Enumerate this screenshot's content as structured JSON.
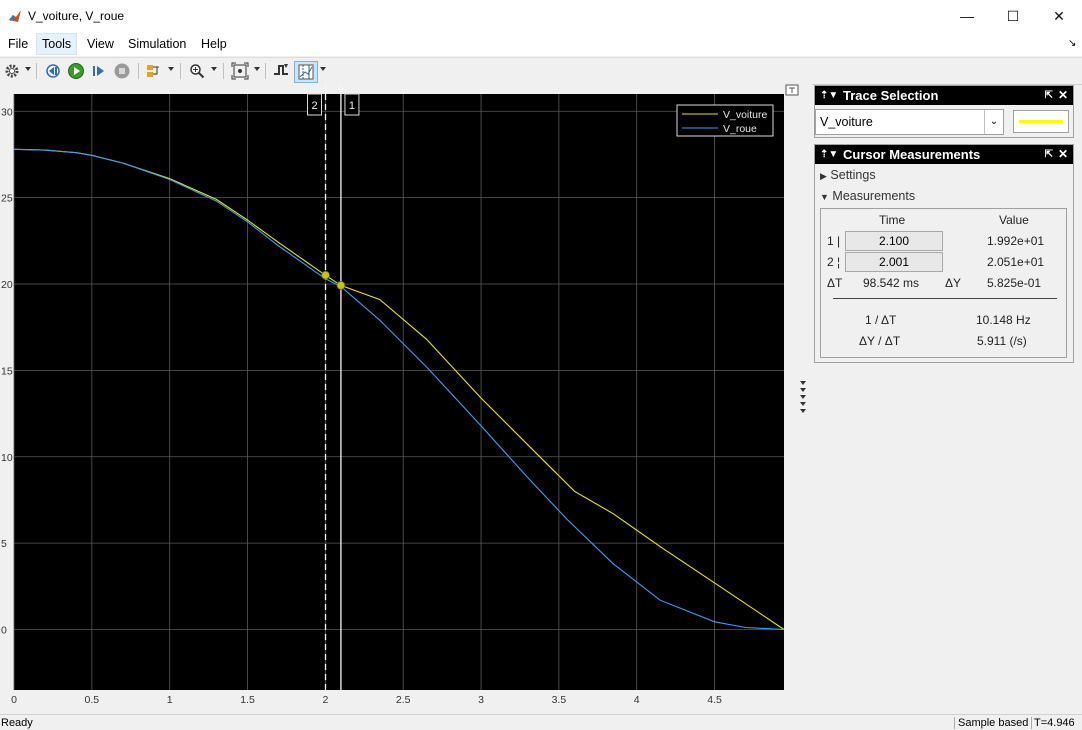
{
  "window": {
    "title": "V_voiture, V_roue",
    "minimize": "—",
    "maximize": "☐",
    "close": "✕"
  },
  "menu": [
    "File",
    "Tools",
    "View",
    "Simulation",
    "Help"
  ],
  "plot": {
    "cursor1_label": "1",
    "cursor2_label": "2",
    "legend": [
      "V_voiture",
      "V_roue"
    ],
    "colors": {
      "V_voiture": "#e6e600",
      "V_roue": "#3d9cf5",
      "background": "#000000",
      "grid": "#5a5a5a"
    }
  },
  "chart_data": {
    "type": "line",
    "xlim": [
      0,
      4.946
    ],
    "ylim": [
      -3.5,
      31
    ],
    "xticks": [
      "0",
      "0.5",
      "1",
      "1.5",
      "2",
      "2.5",
      "3",
      "3.5",
      "4",
      "4.5"
    ],
    "yticks": [
      "0",
      "5",
      "10",
      "15",
      "20",
      "25",
      "30"
    ],
    "grid": true,
    "legend_position": "top-right",
    "series": [
      {
        "name": "V_voiture",
        "x": [
          0,
          0.2,
          0.4,
          0.5,
          0.7,
          1.0,
          1.3,
          1.5,
          1.7,
          2.0,
          2.1,
          2.35,
          2.65,
          3.0,
          3.3,
          3.6,
          3.85,
          4.15,
          4.5,
          4.946
        ],
        "y": [
          27.8,
          27.75,
          27.6,
          27.45,
          27.0,
          26.1,
          24.9,
          23.7,
          22.4,
          20.51,
          19.92,
          19.1,
          16.8,
          13.4,
          10.7,
          8.0,
          6.7,
          4.8,
          2.7,
          0.0
        ]
      },
      {
        "name": "V_roue",
        "x": [
          0,
          0.2,
          0.4,
          0.5,
          0.7,
          1.0,
          1.3,
          1.5,
          1.7,
          2.0,
          2.1,
          2.35,
          2.65,
          3.0,
          3.3,
          3.55,
          3.85,
          4.15,
          4.5,
          4.7,
          4.946
        ],
        "y": [
          27.8,
          27.75,
          27.6,
          27.45,
          27.0,
          26.05,
          24.8,
          23.6,
          22.2,
          20.3,
          19.85,
          17.9,
          15.2,
          11.8,
          8.8,
          6.4,
          3.8,
          1.7,
          0.45,
          0.12,
          0.0
        ]
      }
    ],
    "cursors": [
      {
        "label": "1",
        "x": 2.1,
        "y": 19.92,
        "style": "solid"
      },
      {
        "label": "2",
        "x": 2.001,
        "y": 20.51,
        "style": "dashed"
      }
    ]
  },
  "trace_selection": {
    "title": "Trace Selection",
    "selected": "V_voiture",
    "line_color": "#ffff00"
  },
  "cursor_measurements": {
    "title": "Cursor Measurements",
    "settings_label": "Settings",
    "measurements_label": "Measurements",
    "col_time": "Time",
    "col_value": "Value",
    "row1_label": "1 |",
    "row1_time": "2.100",
    "row1_value": "1.992e+01",
    "row2_label": "2 ¦",
    "row2_time": "2.001",
    "row2_value": "2.051e+01",
    "dt_label": "ΔT",
    "dt_value": "98.542 ms",
    "dy_label": "ΔY",
    "dy_value": "5.825e-01",
    "inv_dt_label": "1 / ΔT",
    "inv_dt_value": "10.148 Hz",
    "dydt_label": "ΔY / ΔT",
    "dydt_value": "5.911 (/s)"
  },
  "status": {
    "left": "Ready",
    "mode": "Sample based",
    "time": "T=4.946"
  }
}
